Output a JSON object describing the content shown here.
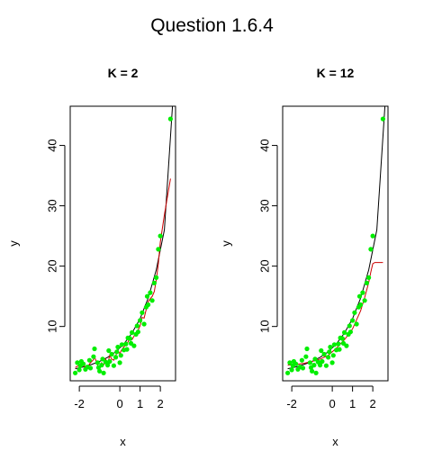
{
  "figure": {
    "title": "Question 1.6.4"
  },
  "chart_data": [
    {
      "type": "scatter",
      "title": "K = 2",
      "xlabel": "x",
      "ylabel": "y",
      "xlim": [
        -2.45,
        2.75
      ],
      "ylim": [
        1.0,
        46.5
      ],
      "xticks": [
        -2,
        0,
        1,
        2
      ],
      "xtick_labels": [
        "-2",
        "0",
        "1",
        "2"
      ],
      "yticks": [
        10,
        20,
        30,
        40
      ],
      "ytick_labels": [
        "10",
        "20",
        "30",
        "40"
      ],
      "grid": false,
      "colors": {
        "points": "#00ee00",
        "true_curve": "#000000",
        "knn_fit": "#cc0000"
      },
      "series": [
        {
          "kind": "points",
          "x": [
            -2.2,
            -2.1,
            -2.0,
            -1.95,
            -1.9,
            -1.8,
            -1.7,
            -1.6,
            -1.5,
            -1.45,
            -1.3,
            -1.25,
            -1.1,
            -1.05,
            -1.0,
            -0.9,
            -0.85,
            -0.8,
            -0.7,
            -0.6,
            -0.55,
            -0.5,
            -0.4,
            -0.3,
            -0.2,
            -0.15,
            -0.1,
            0.0,
            0.05,
            0.1,
            0.2,
            0.3,
            0.35,
            0.4,
            0.5,
            0.55,
            0.6,
            0.7,
            0.8,
            0.85,
            0.9,
            1.0,
            1.1,
            1.2,
            1.3,
            1.35,
            1.4,
            1.5,
            1.6,
            1.7,
            1.8,
            1.9,
            2.0,
            2.5
          ],
          "y": [
            2.3,
            4.0,
            2.8,
            3.5,
            4.2,
            3.8,
            2.9,
            3.3,
            4.4,
            3.1,
            5.0,
            6.3,
            4.0,
            3.2,
            2.6,
            3.6,
            4.6,
            2.3,
            4.1,
            3.6,
            6.0,
            4.2,
            5.4,
            3.5,
            4.9,
            5.8,
            6.6,
            4.0,
            5.2,
            7.0,
            6.1,
            7.1,
            6.2,
            8.1,
            8.0,
            7.2,
            9.0,
            6.8,
            8.7,
            10.1,
            9.1,
            11.0,
            12.3,
            10.4,
            13.2,
            15.0,
            13.6,
            15.6,
            14.3,
            17.2,
            18.1,
            22.8,
            25.0,
            44.4
          ]
        },
        {
          "kind": "line",
          "name": "true_curve",
          "x": [
            -2.2,
            -1.8,
            -1.4,
            -1.0,
            -0.6,
            -0.2,
            0.2,
            0.6,
            1.0,
            1.4,
            1.8,
            2.2,
            2.6
          ],
          "y": [
            3.0,
            3.3,
            3.7,
            4.2,
            4.9,
            5.8,
            7.1,
            8.9,
            11.3,
            14.7,
            19.4,
            26.0,
            46.5
          ]
        },
        {
          "kind": "line",
          "name": "knn_fit",
          "x": [
            -2.2,
            -1.9,
            -1.8,
            -1.6,
            -1.5,
            -1.3,
            -1.25,
            -1.1,
            -1.0,
            -0.9,
            -0.8,
            -0.7,
            -0.6,
            -0.5,
            -0.4,
            -0.3,
            -0.2,
            -0.1,
            0.0,
            0.1,
            0.2,
            0.3,
            0.4,
            0.5,
            0.6,
            0.7,
            0.8,
            0.9,
            1.0,
            1.1,
            1.2,
            1.3,
            1.4,
            1.5,
            1.6,
            1.7,
            1.8,
            1.9,
            2.0,
            2.2,
            2.5
          ],
          "y": [
            3.2,
            3.8,
            3.5,
            3.0,
            3.8,
            4.5,
            5.0,
            3.6,
            2.9,
            4.0,
            3.6,
            4.6,
            3.8,
            5.2,
            4.6,
            4.4,
            5.2,
            6.0,
            5.5,
            6.2,
            6.6,
            7.0,
            7.4,
            8.2,
            7.8,
            8.4,
            9.0,
            9.4,
            10.1,
            11.5,
            11.4,
            12.8,
            14.1,
            14.6,
            15.0,
            15.8,
            17.7,
            20.4,
            24.0,
            28.5,
            34.5
          ]
        }
      ]
    },
    {
      "type": "scatter",
      "title": "K = 12",
      "xlabel": "x",
      "ylabel": "y",
      "xlim": [
        -2.45,
        2.75
      ],
      "ylim": [
        1.0,
        46.5
      ],
      "xticks": [
        -2,
        0,
        1,
        2
      ],
      "xtick_labels": [
        "-2",
        "0",
        "1",
        "2"
      ],
      "yticks": [
        10,
        20,
        30,
        40
      ],
      "ytick_labels": [
        "10",
        "20",
        "30",
        "40"
      ],
      "grid": false,
      "colors": {
        "points": "#00ee00",
        "true_curve": "#000000",
        "knn_fit": "#cc0000"
      },
      "series": [
        {
          "kind": "points",
          "x": [
            -2.2,
            -2.1,
            -2.0,
            -1.95,
            -1.9,
            -1.8,
            -1.7,
            -1.6,
            -1.5,
            -1.45,
            -1.3,
            -1.25,
            -1.1,
            -1.05,
            -1.0,
            -0.9,
            -0.85,
            -0.8,
            -0.7,
            -0.6,
            -0.55,
            -0.5,
            -0.4,
            -0.3,
            -0.2,
            -0.15,
            -0.1,
            0.0,
            0.05,
            0.1,
            0.2,
            0.3,
            0.35,
            0.4,
            0.5,
            0.55,
            0.6,
            0.7,
            0.8,
            0.85,
            0.9,
            1.0,
            1.1,
            1.2,
            1.3,
            1.35,
            1.4,
            1.5,
            1.6,
            1.7,
            1.8,
            1.9,
            2.0,
            2.5
          ],
          "y": [
            2.3,
            4.0,
            2.8,
            3.5,
            4.2,
            3.8,
            2.9,
            3.3,
            4.4,
            3.1,
            5.0,
            6.3,
            4.0,
            3.2,
            2.6,
            3.6,
            4.6,
            2.3,
            4.1,
            3.6,
            6.0,
            4.2,
            5.4,
            3.5,
            4.9,
            5.8,
            6.6,
            4.0,
            5.2,
            7.0,
            6.1,
            7.1,
            6.2,
            8.1,
            8.0,
            7.2,
            9.0,
            6.8,
            8.7,
            10.1,
            9.1,
            11.0,
            12.3,
            10.4,
            13.2,
            15.0,
            13.6,
            15.6,
            14.3,
            17.2,
            18.1,
            22.8,
            25.0,
            44.4
          ]
        },
        {
          "kind": "line",
          "name": "true_curve",
          "x": [
            -2.2,
            -1.8,
            -1.4,
            -1.0,
            -0.6,
            -0.2,
            0.2,
            0.6,
            1.0,
            1.4,
            1.8,
            2.2,
            2.6
          ],
          "y": [
            3.0,
            3.3,
            3.7,
            4.2,
            4.9,
            5.8,
            7.1,
            8.9,
            11.3,
            14.7,
            19.4,
            26.0,
            46.5
          ]
        },
        {
          "kind": "line",
          "name": "knn_fit",
          "x": [
            -2.2,
            -1.8,
            -1.4,
            -1.0,
            -0.6,
            -0.2,
            0.2,
            0.6,
            1.0,
            1.4,
            1.6,
            1.8,
            1.9,
            2.0,
            2.1,
            2.5
          ],
          "y": [
            3.6,
            3.7,
            3.9,
            4.2,
            4.6,
            5.2,
            6.4,
            7.8,
            9.6,
            12.6,
            14.8,
            17.3,
            19.0,
            20.4,
            20.6,
            20.6
          ]
        }
      ]
    }
  ]
}
